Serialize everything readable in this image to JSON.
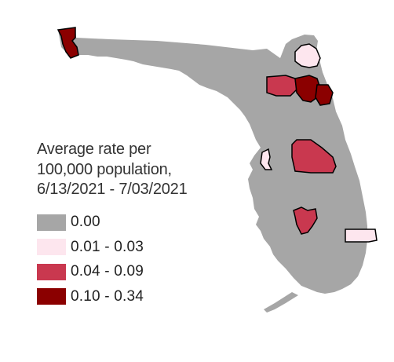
{
  "colors": {
    "background": "#ffffff",
    "land": "#a6a6a6",
    "outline": "#000000",
    "class_0": "#a6a6a6",
    "class_1": "#fde6ee",
    "class_2": "#c9384f",
    "class_3": "#8b0000"
  },
  "legend": {
    "title": "Average rate per\n100,000 population,\n6/13/2021 - 7/03/2021",
    "items": [
      {
        "label": "0.00",
        "color": "#a6a6a6"
      },
      {
        "label": "0.01 - 0.03",
        "color": "#fde6ee"
      },
      {
        "label": "0.04 - 0.09",
        "color": "#c9384f"
      },
      {
        "label": "0.10 - 0.34",
        "color": "#8b0000"
      }
    ]
  },
  "highlighted_counties": [
    {
      "name": "escambia",
      "class": 3
    },
    {
      "name": "nassau",
      "class": 1
    },
    {
      "name": "duval",
      "class": 3
    },
    {
      "name": "alachua",
      "class": 2
    },
    {
      "name": "putnam",
      "class": 3
    },
    {
      "name": "st-johns",
      "class": 3
    },
    {
      "name": "flagler",
      "class": 3
    },
    {
      "name": "polk",
      "class": 2
    },
    {
      "name": "pinellas",
      "class": 1
    },
    {
      "name": "sarasota",
      "class": 2
    },
    {
      "name": "palm-beach",
      "class": 1
    }
  ]
}
